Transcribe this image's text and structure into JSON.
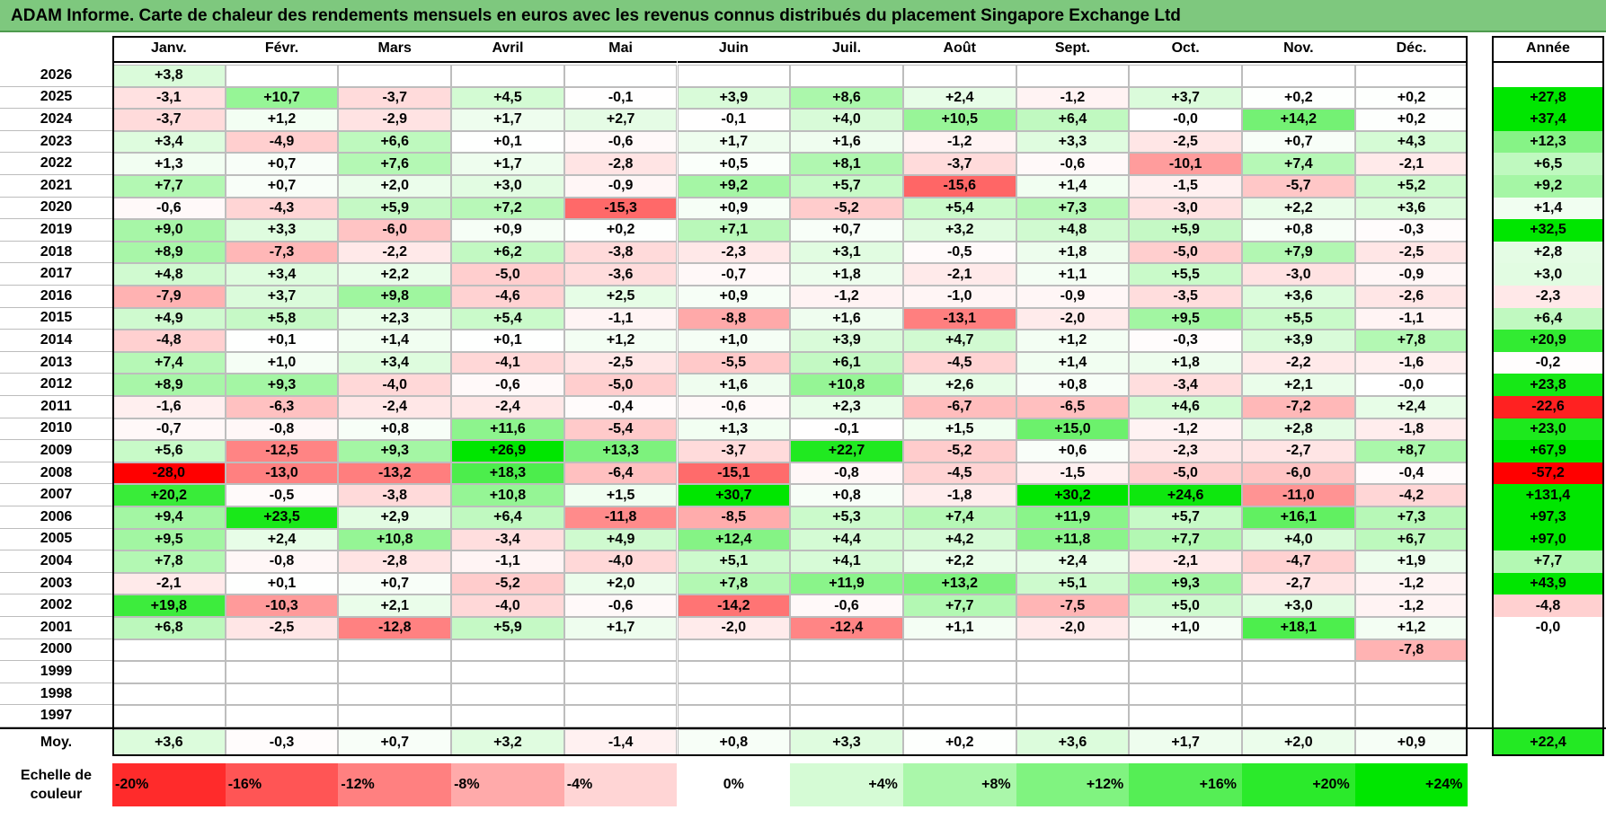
{
  "title": "ADAM Informe. Carte de chaleur des rendements mensuels en euros avec les revenus connus distribués du placement Singapore Exchange Ltd",
  "chart_data": {
    "type": "heatmap",
    "title": "ADAM Informe. Carte de chaleur des rendements mensuels en euros avec les revenus connus distribués du placement Singapore Exchange Ltd",
    "months": [
      "Janv.",
      "Févr.",
      "Mars",
      "Avril",
      "Mai",
      "Juin",
      "Juil.",
      "Août",
      "Sept.",
      "Oct.",
      "Nov.",
      "Déc."
    ],
    "year_header": "Année",
    "rows": [
      {
        "year": "2026",
        "months": [
          "+3,8",
          "",
          "",
          "",
          "",
          "",
          "",
          "",
          "",
          "",
          "",
          ""
        ],
        "annual": ""
      },
      {
        "year": "2025",
        "months": [
          "-3,1",
          "+10,7",
          "-3,7",
          "+4,5",
          "-0,1",
          "+3,9",
          "+8,6",
          "+2,4",
          "-1,2",
          "+3,7",
          "+0,2",
          "+0,2"
        ],
        "annual": "+27,8"
      },
      {
        "year": "2024",
        "months": [
          "-3,7",
          "+1,2",
          "-2,9",
          "+1,7",
          "+2,7",
          "-0,1",
          "+4,0",
          "+10,5",
          "+6,4",
          "-0,0",
          "+14,2",
          "+0,2"
        ],
        "annual": "+37,4"
      },
      {
        "year": "2023",
        "months": [
          "+3,4",
          "-4,9",
          "+6,6",
          "+0,1",
          "-0,6",
          "+1,7",
          "+1,6",
          "-1,2",
          "+3,3",
          "-2,5",
          "+0,7",
          "+4,3"
        ],
        "annual": "+12,3"
      },
      {
        "year": "2022",
        "months": [
          "+1,3",
          "+0,7",
          "+7,6",
          "+1,7",
          "-2,8",
          "+0,5",
          "+8,1",
          "-3,7",
          "-0,6",
          "-10,1",
          "+7,4",
          "-2,1"
        ],
        "annual": "+6,5"
      },
      {
        "year": "2021",
        "months": [
          "+7,7",
          "+0,7",
          "+2,0",
          "+3,0",
          "-0,9",
          "+9,2",
          "+5,7",
          "-15,6",
          "+1,4",
          "-1,5",
          "-5,7",
          "+5,2"
        ],
        "annual": "+9,2"
      },
      {
        "year": "2020",
        "months": [
          "-0,6",
          "-4,3",
          "+5,9",
          "+7,2",
          "-15,3",
          "+0,9",
          "-5,2",
          "+5,4",
          "+7,3",
          "-3,0",
          "+2,2",
          "+3,6"
        ],
        "annual": "+1,4"
      },
      {
        "year": "2019",
        "months": [
          "+9,0",
          "+3,3",
          "-6,0",
          "+0,9",
          "+0,2",
          "+7,1",
          "+0,7",
          "+3,2",
          "+4,8",
          "+5,9",
          "+0,8",
          "-0,3"
        ],
        "annual": "+32,5"
      },
      {
        "year": "2018",
        "months": [
          "+8,9",
          "-7,3",
          "-2,2",
          "+6,2",
          "-3,8",
          "-2,3",
          "+3,1",
          "-0,5",
          "+1,8",
          "-5,0",
          "+7,9",
          "-2,5"
        ],
        "annual": "+2,8"
      },
      {
        "year": "2017",
        "months": [
          "+4,8",
          "+3,4",
          "+2,2",
          "-5,0",
          "-3,6",
          "-0,7",
          "+1,8",
          "-2,1",
          "+1,1",
          "+5,5",
          "-3,0",
          "-0,9"
        ],
        "annual": "+3,0"
      },
      {
        "year": "2016",
        "months": [
          "-7,9",
          "+3,7",
          "+9,8",
          "-4,6",
          "+2,5",
          "+0,9",
          "-1,2",
          "-1,0",
          "-0,9",
          "-3,5",
          "+3,6",
          "-2,6"
        ],
        "annual": "-2,3"
      },
      {
        "year": "2015",
        "months": [
          "+4,9",
          "+5,8",
          "+2,3",
          "+5,4",
          "-1,1",
          "-8,8",
          "+1,6",
          "-13,1",
          "-2,0",
          "+9,5",
          "+5,5",
          "-1,1"
        ],
        "annual": "+6,4"
      },
      {
        "year": "2014",
        "months": [
          "-4,8",
          "+0,1",
          "+1,4",
          "+0,1",
          "+1,2",
          "+1,0",
          "+3,9",
          "+4,7",
          "+1,2",
          "-0,3",
          "+3,9",
          "+7,8"
        ],
        "annual": "+20,9"
      },
      {
        "year": "2013",
        "months": [
          "+7,4",
          "+1,0",
          "+3,4",
          "-4,1",
          "-2,5",
          "-5,5",
          "+6,1",
          "-4,5",
          "+1,4",
          "+1,8",
          "-2,2",
          "-1,6"
        ],
        "annual": "-0,2"
      },
      {
        "year": "2012",
        "months": [
          "+8,9",
          "+9,3",
          "-4,0",
          "-0,6",
          "-5,0",
          "+1,6",
          "+10,8",
          "+2,6",
          "+0,8",
          "-3,4",
          "+2,1",
          "-0,0"
        ],
        "annual": "+23,8"
      },
      {
        "year": "2011",
        "months": [
          "-1,6",
          "-6,3",
          "-2,4",
          "-2,4",
          "-0,4",
          "-0,6",
          "+2,3",
          "-6,7",
          "-6,5",
          "+4,6",
          "-7,2",
          "+2,4"
        ],
        "annual": "-22,6"
      },
      {
        "year": "2010",
        "months": [
          "-0,7",
          "-0,8",
          "+0,8",
          "+11,6",
          "-5,4",
          "+1,3",
          "-0,1",
          "+1,5",
          "+15,0",
          "-1,2",
          "+2,8",
          "-1,8"
        ],
        "annual": "+23,0"
      },
      {
        "year": "2009",
        "months": [
          "+5,6",
          "-12,5",
          "+9,3",
          "+26,9",
          "+13,3",
          "-3,7",
          "+22,7",
          "-5,2",
          "+0,6",
          "-2,3",
          "-2,7",
          "+8,7"
        ],
        "annual": "+67,9"
      },
      {
        "year": "2008",
        "months": [
          "-28,0",
          "-13,0",
          "-13,2",
          "+18,3",
          "-6,4",
          "-15,1",
          "-0,8",
          "-4,5",
          "-1,5",
          "-5,0",
          "-6,0",
          "-0,4"
        ],
        "annual": "-57,2"
      },
      {
        "year": "2007",
        "months": [
          "+20,2",
          "-0,5",
          "-3,8",
          "+10,8",
          "+1,5",
          "+30,7",
          "+0,8",
          "-1,8",
          "+30,2",
          "+24,6",
          "-11,0",
          "-4,2"
        ],
        "annual": "+131,4"
      },
      {
        "year": "2006",
        "months": [
          "+9,4",
          "+23,5",
          "+2,9",
          "+6,4",
          "-11,8",
          "-8,5",
          "+5,3",
          "+7,4",
          "+11,9",
          "+5,7",
          "+16,1",
          "+7,3"
        ],
        "annual": "+97,3"
      },
      {
        "year": "2005",
        "months": [
          "+9,5",
          "+2,4",
          "+10,8",
          "-3,4",
          "+4,9",
          "+12,4",
          "+4,4",
          "+4,2",
          "+11,8",
          "+7,7",
          "+4,0",
          "+6,7"
        ],
        "annual": "+97,0"
      },
      {
        "year": "2004",
        "months": [
          "+7,8",
          "-0,8",
          "-2,8",
          "-1,1",
          "-4,0",
          "+5,1",
          "+4,1",
          "+2,2",
          "+2,4",
          "-2,1",
          "-4,7",
          "+1,9"
        ],
        "annual": "+7,7"
      },
      {
        "year": "2003",
        "months": [
          "-2,1",
          "+0,1",
          "+0,7",
          "-5,2",
          "+2,0",
          "+7,8",
          "+11,9",
          "+13,2",
          "+5,1",
          "+9,3",
          "-2,7",
          "-1,2"
        ],
        "annual": "+43,9"
      },
      {
        "year": "2002",
        "months": [
          "+19,8",
          "-10,3",
          "+2,1",
          "-4,0",
          "-0,6",
          "-14,2",
          "-0,6",
          "+7,7",
          "-7,5",
          "+5,0",
          "+3,0",
          "-1,2"
        ],
        "annual": "-4,8"
      },
      {
        "year": "2001",
        "months": [
          "+6,8",
          "-2,5",
          "-12,8",
          "+5,9",
          "+1,7",
          "-2,0",
          "-12,4",
          "+1,1",
          "-2,0",
          "+1,0",
          "+18,1",
          "+1,2"
        ],
        "annual": "-0,0"
      },
      {
        "year": "2000",
        "months": [
          "",
          "",
          "",
          "",
          "",
          "",
          "",
          "",
          "",
          "",
          "",
          "-7,8"
        ],
        "annual": ""
      },
      {
        "year": "1999",
        "months": [
          "",
          "",
          "",
          "",
          "",
          "",
          "",
          "",
          "",
          "",
          "",
          ""
        ],
        "annual": ""
      },
      {
        "year": "1998",
        "months": [
          "",
          "",
          "",
          "",
          "",
          "",
          "",
          "",
          "",
          "",
          "",
          ""
        ],
        "annual": ""
      },
      {
        "year": "1997",
        "months": [
          "",
          "",
          "",
          "",
          "",
          "",
          "",
          "",
          "",
          "",
          "",
          ""
        ],
        "annual": ""
      }
    ],
    "average": {
      "label": "Moy.",
      "months": [
        "+3,6",
        "-0,3",
        "+0,7",
        "+3,2",
        "-1,4",
        "+0,8",
        "+3,3",
        "+0,2",
        "+3,6",
        "+1,7",
        "+2,0",
        "+0,9"
      ],
      "annual": "+22,4"
    },
    "scale": {
      "label": "Echelle de couleur",
      "steps": [
        {
          "label": "-20%",
          "value": -20
        },
        {
          "label": "-16%",
          "value": -16
        },
        {
          "label": "-12%",
          "value": -12
        },
        {
          "label": "-8%",
          "value": -8
        },
        {
          "label": "-4%",
          "value": -4
        },
        {
          "label": "0%",
          "value": 0
        },
        {
          "label": "+4%",
          "value": 4
        },
        {
          "label": "+8%",
          "value": 8
        },
        {
          "label": "+12%",
          "value": 12
        },
        {
          "label": "+16%",
          "value": 16
        },
        {
          "label": "+20%",
          "value": 20
        },
        {
          "label": "+24%",
          "value": 24
        }
      ]
    },
    "colors": {
      "negative_max": "#ff0000",
      "neutral": "#ffffff",
      "positive_max": "#00e000"
    }
  }
}
